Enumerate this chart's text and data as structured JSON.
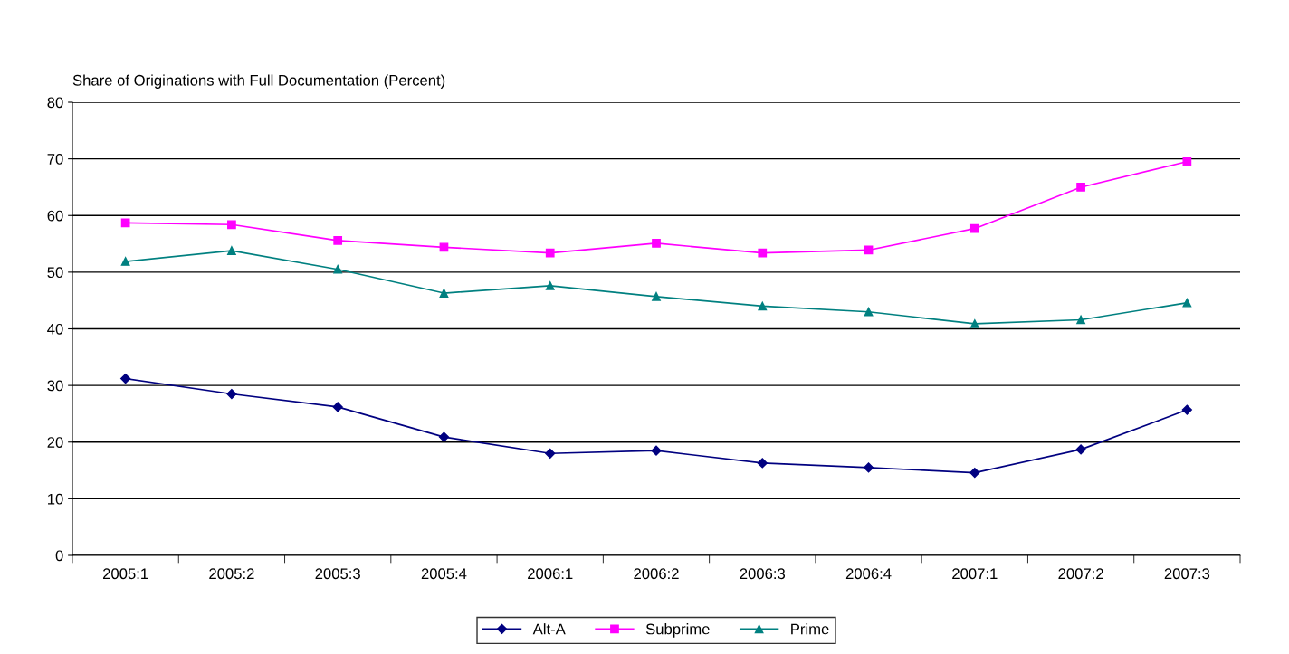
{
  "chart_data": {
    "type": "line",
    "title": "Share of Originations with Full Documentation (Percent)",
    "categories": [
      "2005:1",
      "2005:2",
      "2005:3",
      "2005:4",
      "2006:1",
      "2006:2",
      "2006:3",
      "2006:4",
      "2007:1",
      "2007:2",
      "2007:3"
    ],
    "series": [
      {
        "name": "Alt-A",
        "color": "#000080",
        "marker": "diamond",
        "values": [
          31.2,
          28.5,
          26.2,
          20.9,
          18.0,
          18.5,
          16.3,
          15.5,
          14.6,
          18.7,
          25.7
        ]
      },
      {
        "name": "Subprime",
        "color": "#ff00ff",
        "marker": "square",
        "values": [
          58.7,
          58.4,
          55.6,
          54.4,
          53.4,
          55.1,
          53.4,
          53.9,
          57.7,
          65.0,
          69.5
        ]
      },
      {
        "name": "Prime",
        "color": "#008080",
        "marker": "triangle",
        "values": [
          51.9,
          53.8,
          50.5,
          46.3,
          47.6,
          45.7,
          44.0,
          43.0,
          40.9,
          41.6,
          44.6
        ]
      }
    ],
    "ylim": [
      0,
      80
    ],
    "yticks": [
      0,
      10,
      20,
      30,
      40,
      50,
      60,
      70,
      80
    ],
    "grid": "y",
    "legend": "bottom",
    "line_style": "solid"
  }
}
